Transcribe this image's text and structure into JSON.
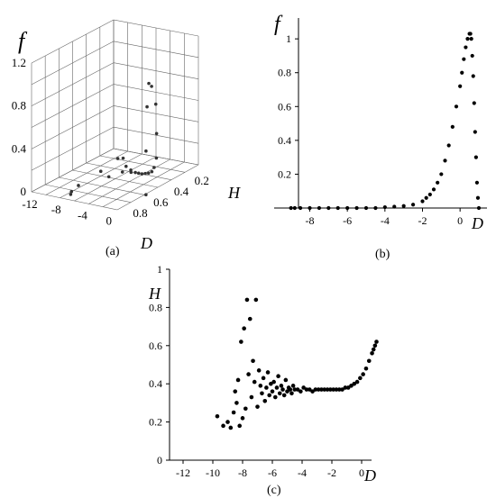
{
  "chart_data": [
    {
      "panel": "(a)",
      "type": "scatter",
      "projection": "3d",
      "title": "",
      "xlabel": "D",
      "ylabel": "H",
      "zlabel": "f",
      "x_ticks": [
        -12,
        -8,
        -4,
        0
      ],
      "y_ticks": [
        0.2,
        0.4,
        0.6,
        0.8
      ],
      "z_ticks": [
        0,
        0.4,
        0.8,
        1.2
      ],
      "xlim": [
        -12,
        1
      ],
      "ylim": [
        0.1,
        0.9
      ],
      "zlim": [
        0,
        1.2
      ],
      "grid": true,
      "points": [
        {
          "x": -9.5,
          "y": 0.22,
          "z": 0.0
        },
        {
          "x": -9.0,
          "y": 0.2,
          "z": 0.0
        },
        {
          "x": -8.5,
          "y": 0.45,
          "z": 0.01
        },
        {
          "x": -8.0,
          "y": 0.7,
          "z": 0.01
        },
        {
          "x": -7.5,
          "y": 0.8,
          "z": 0.01
        },
        {
          "x": -7.0,
          "y": 0.84,
          "z": 0.01
        },
        {
          "x": -7.0,
          "y": 0.3,
          "z": 0.0
        },
        {
          "x": -6.5,
          "y": 0.5,
          "z": 0.01
        },
        {
          "x": -6.0,
          "y": 0.4,
          "z": 0.01
        },
        {
          "x": -5.5,
          "y": 0.35,
          "z": 0.01
        },
        {
          "x": -5.0,
          "y": 0.38,
          "z": 0.01
        },
        {
          "x": -4.5,
          "y": 0.37,
          "z": 0.01
        },
        {
          "x": -4.0,
          "y": 0.37,
          "z": 0.01
        },
        {
          "x": -3.5,
          "y": 0.37,
          "z": 0.01
        },
        {
          "x": -3.0,
          "y": 0.37,
          "z": 0.02
        },
        {
          "x": -2.5,
          "y": 0.37,
          "z": 0.03
        },
        {
          "x": -2.0,
          "y": 0.37,
          "z": 0.05
        },
        {
          "x": -1.5,
          "y": 0.38,
          "z": 0.1
        },
        {
          "x": -1.0,
          "y": 0.39,
          "z": 0.2
        },
        {
          "x": -0.5,
          "y": 0.42,
          "z": 0.45
        },
        {
          "x": 0.0,
          "y": 0.46,
          "z": 0.75
        },
        {
          "x": 0.3,
          "y": 0.52,
          "z": 0.95
        },
        {
          "x": 0.5,
          "y": 0.56,
          "z": 1.0
        },
        {
          "x": 0.7,
          "y": 0.59,
          "z": 0.8
        },
        {
          "x": 0.85,
          "y": 0.61,
          "z": 0.4
        },
        {
          "x": 1.0,
          "y": 0.62,
          "z": 0.0
        }
      ]
    },
    {
      "panel": "(b)",
      "type": "scatter",
      "title": "",
      "xlabel": "D",
      "ylabel": "f",
      "x_ticks": [
        -8,
        -6,
        -4,
        -2,
        0
      ],
      "y_ticks": [
        0.2,
        0.4,
        0.6,
        0.8,
        1
      ],
      "xlim": [
        -9.5,
        1.2
      ],
      "ylim": [
        0,
        1.07
      ],
      "grid": false,
      "x": [
        -9.0,
        -8.8,
        -8.5,
        -8.0,
        -7.5,
        -7.0,
        -6.5,
        -6.0,
        -5.5,
        -5.0,
        -4.5,
        -4.0,
        -3.5,
        -3.0,
        -2.5,
        -2.0,
        -1.8,
        -1.6,
        -1.4,
        -1.2,
        -1.0,
        -0.8,
        -0.6,
        -0.4,
        -0.2,
        0.0,
        0.1,
        0.2,
        0.3,
        0.4,
        0.5,
        0.55,
        0.6,
        0.65,
        0.7,
        0.75,
        0.8,
        0.85,
        0.9,
        0.95,
        1.0
      ],
      "y": [
        0.0,
        0.0,
        0.0,
        0.0,
        0.0,
        0.0,
        0.0,
        0.0,
        0.0,
        0.0,
        0.0,
        0.005,
        0.008,
        0.012,
        0.02,
        0.04,
        0.06,
        0.08,
        0.11,
        0.15,
        0.2,
        0.28,
        0.37,
        0.48,
        0.6,
        0.72,
        0.8,
        0.88,
        0.95,
        1.0,
        1.03,
        1.03,
        1.0,
        0.9,
        0.78,
        0.62,
        0.45,
        0.3,
        0.15,
        0.06,
        0.0
      ]
    },
    {
      "panel": "(c)",
      "type": "scatter",
      "title": "",
      "xlabel": "D",
      "ylabel": "H",
      "x_ticks": [
        -12,
        -10,
        -8,
        -6,
        -4,
        -2,
        0
      ],
      "y_ticks": [
        0,
        0.2,
        0.4,
        0.6,
        0.8,
        1
      ],
      "xlim": [
        -12,
        1.3
      ],
      "ylim": [
        0,
        1
      ],
      "grid": false,
      "x": [
        -9.7,
        -9.3,
        -9.0,
        -8.8,
        -8.6,
        -8.5,
        -8.4,
        -8.3,
        -8.2,
        -8.1,
        -8.0,
        -7.9,
        -7.8,
        -7.7,
        -7.6,
        -7.5,
        -7.4,
        -7.3,
        -7.2,
        -7.1,
        -7.0,
        -6.9,
        -6.8,
        -6.7,
        -6.6,
        -6.5,
        -6.4,
        -6.3,
        -6.2,
        -6.1,
        -6.0,
        -5.9,
        -5.8,
        -5.7,
        -5.6,
        -5.5,
        -5.4,
        -5.3,
        -5.2,
        -5.1,
        -5.0,
        -4.9,
        -4.8,
        -4.7,
        -4.6,
        -4.5,
        -4.3,
        -4.1,
        -3.9,
        -3.7,
        -3.5,
        -3.3,
        -3.1,
        -2.9,
        -2.7,
        -2.5,
        -2.3,
        -2.1,
        -1.9,
        -1.7,
        -1.5,
        -1.3,
        -1.1,
        -0.9,
        -0.7,
        -0.5,
        -0.3,
        -0.1,
        0.1,
        0.3,
        0.5,
        0.7,
        0.8,
        0.9,
        1.0
      ],
      "y": [
        0.23,
        0.18,
        0.2,
        0.17,
        0.25,
        0.36,
        0.3,
        0.42,
        0.18,
        0.62,
        0.22,
        0.69,
        0.27,
        0.84,
        0.45,
        0.74,
        0.33,
        0.52,
        0.41,
        0.84,
        0.28,
        0.47,
        0.39,
        0.35,
        0.43,
        0.31,
        0.38,
        0.46,
        0.34,
        0.4,
        0.36,
        0.41,
        0.33,
        0.38,
        0.44,
        0.35,
        0.39,
        0.37,
        0.34,
        0.42,
        0.36,
        0.38,
        0.37,
        0.35,
        0.39,
        0.37,
        0.37,
        0.36,
        0.38,
        0.37,
        0.37,
        0.36,
        0.37,
        0.37,
        0.37,
        0.37,
        0.37,
        0.37,
        0.37,
        0.37,
        0.37,
        0.37,
        0.38,
        0.38,
        0.39,
        0.4,
        0.41,
        0.43,
        0.45,
        0.48,
        0.52,
        0.56,
        0.58,
        0.6,
        0.62
      ]
    }
  ]
}
